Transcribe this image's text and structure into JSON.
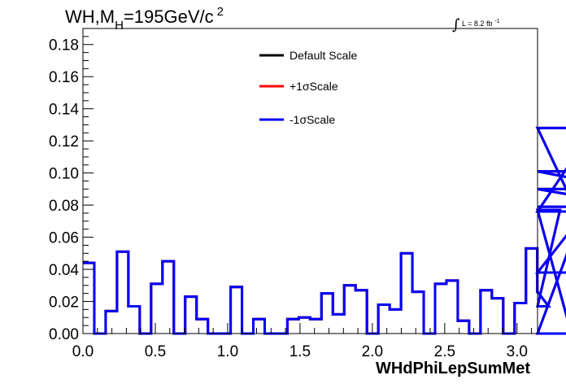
{
  "chart_data": {
    "type": "line",
    "style": "step-histogram",
    "title_main": "WH,M",
    "title_sub": "H",
    "title_rest": "=195GeV/c",
    "title_sup": "2",
    "lumi_label": "L = 8.2 fb",
    "lumi_sup": "-1",
    "xlabel": "WHdPhiLepSumMet",
    "ylabel": "",
    "xlim": [
      0,
      3.1416
    ],
    "ylim": [
      0,
      0.19
    ],
    "x_ticks": [
      "0.0",
      "0.5",
      "1.0",
      "1.5",
      "2.0",
      "2.5",
      "3.0"
    ],
    "y_ticks": [
      "0.00",
      "0.02",
      "0.04",
      "0.06",
      "0.08",
      "0.10",
      "0.12",
      "0.14",
      "0.16",
      "0.18"
    ],
    "bin_width": 0.0785,
    "legend_position": "top-center",
    "series": [
      {
        "name": "Default Scale",
        "color": "#000000",
        "values": [
          0.044,
          0.0,
          0.014,
          0.051,
          0.017,
          0.0,
          0.031,
          0.045,
          0.0,
          0.023,
          0.009,
          0.0,
          0.0,
          0.029,
          0.0,
          0.009,
          0.0,
          0.0,
          0.009,
          0.01,
          0.009,
          0.025,
          0.012,
          0.03,
          0.027,
          0.0,
          0.018,
          0.015,
          0.05,
          0.026,
          0.0,
          0.031,
          0.033,
          0.008,
          0.0,
          0.027,
          0.022,
          0.0,
          0.019,
          0.053,
          0.026,
          0.017,
          0.077,
          0.0,
          0.076,
          0.128,
          0.038,
          0.101,
          0.09,
          0.079
        ]
      },
      {
        "name": "+1σScale",
        "color": "#ff0000",
        "values": [
          0.044,
          0.0,
          0.014,
          0.051,
          0.017,
          0.0,
          0.031,
          0.045,
          0.0,
          0.023,
          0.009,
          0.0,
          0.0,
          0.029,
          0.0,
          0.009,
          0.0,
          0.0,
          0.009,
          0.01,
          0.009,
          0.025,
          0.012,
          0.03,
          0.027,
          0.0,
          0.018,
          0.015,
          0.05,
          0.026,
          0.0,
          0.031,
          0.033,
          0.008,
          0.0,
          0.027,
          0.022,
          0.0,
          0.019,
          0.053,
          0.026,
          0.017,
          0.077,
          0.0,
          0.076,
          0.128,
          0.038,
          0.101,
          0.09,
          0.079
        ]
      },
      {
        "name": "-1σScale",
        "color": "#0000ff",
        "values": [
          0.044,
          0.0,
          0.014,
          0.051,
          0.017,
          0.0,
          0.031,
          0.045,
          0.0,
          0.023,
          0.009,
          0.0,
          0.0,
          0.029,
          0.0,
          0.009,
          0.0,
          0.0,
          0.009,
          0.01,
          0.009,
          0.025,
          0.012,
          0.03,
          0.027,
          0.0,
          0.018,
          0.015,
          0.05,
          0.026,
          0.0,
          0.031,
          0.033,
          0.008,
          0.0,
          0.027,
          0.022,
          0.0,
          0.019,
          0.053,
          0.026,
          0.017,
          0.077,
          0.0,
          0.076,
          0.128,
          0.038,
          0.101,
          0.09,
          0.079
        ]
      }
    ]
  }
}
